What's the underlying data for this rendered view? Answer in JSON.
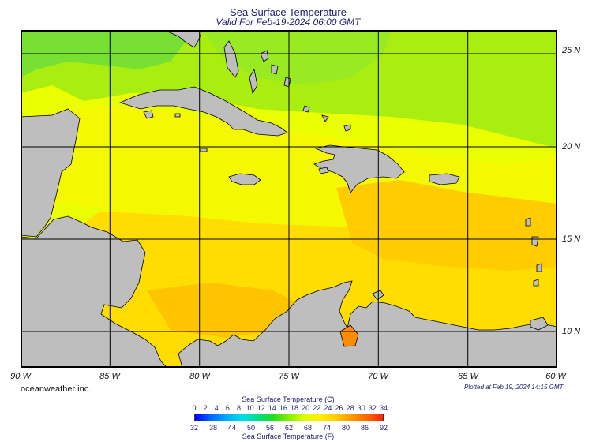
{
  "header": {
    "title": "Sea Surface Temperature",
    "subtitle": "Valid For Feb-19-2024 06:00 GMT"
  },
  "map": {
    "lon_labels": [
      "90 W",
      "85 W",
      "80 W",
      "75 W",
      "70 W",
      "65 W",
      "60 W"
    ],
    "lat_labels": [
      "25 N",
      "20 N",
      "15 N",
      "10 N"
    ],
    "colors": {
      "land": "#bebebe",
      "coast": "#000000",
      "grid": "#000000",
      "sst_cool": "#66dd33",
      "sst_mild": "#eeff00",
      "sst_warm": "#ffcc00",
      "sst_hot": "#ff8800"
    }
  },
  "footer": {
    "brand": "oceanweather inc.",
    "plotted": "Plotted at Feb 19, 2024 14:15 GMT"
  },
  "legend": {
    "celsius_title": "Sea Surface Temperature (C)",
    "celsius_ticks": [
      "0",
      "2",
      "4",
      "6",
      "8",
      "10",
      "12",
      "14",
      "16",
      "18",
      "20",
      "22",
      "24",
      "26",
      "28",
      "30",
      "32",
      "34"
    ],
    "fahrenheit_title": "Sea Surface Temperature (F)",
    "fahrenheit_ticks": [
      "32",
      "38",
      "44",
      "50",
      "56",
      "62",
      "68",
      "74",
      "80",
      "86",
      "92"
    ],
    "gradient": [
      "#0000ff",
      "#0066ff",
      "#00aaff",
      "#00ddee",
      "#00dd88",
      "#22dd22",
      "#88ee00",
      "#ddff00",
      "#ffee00",
      "#ffcc00",
      "#ff9900",
      "#ff6600",
      "#ff2200"
    ]
  }
}
